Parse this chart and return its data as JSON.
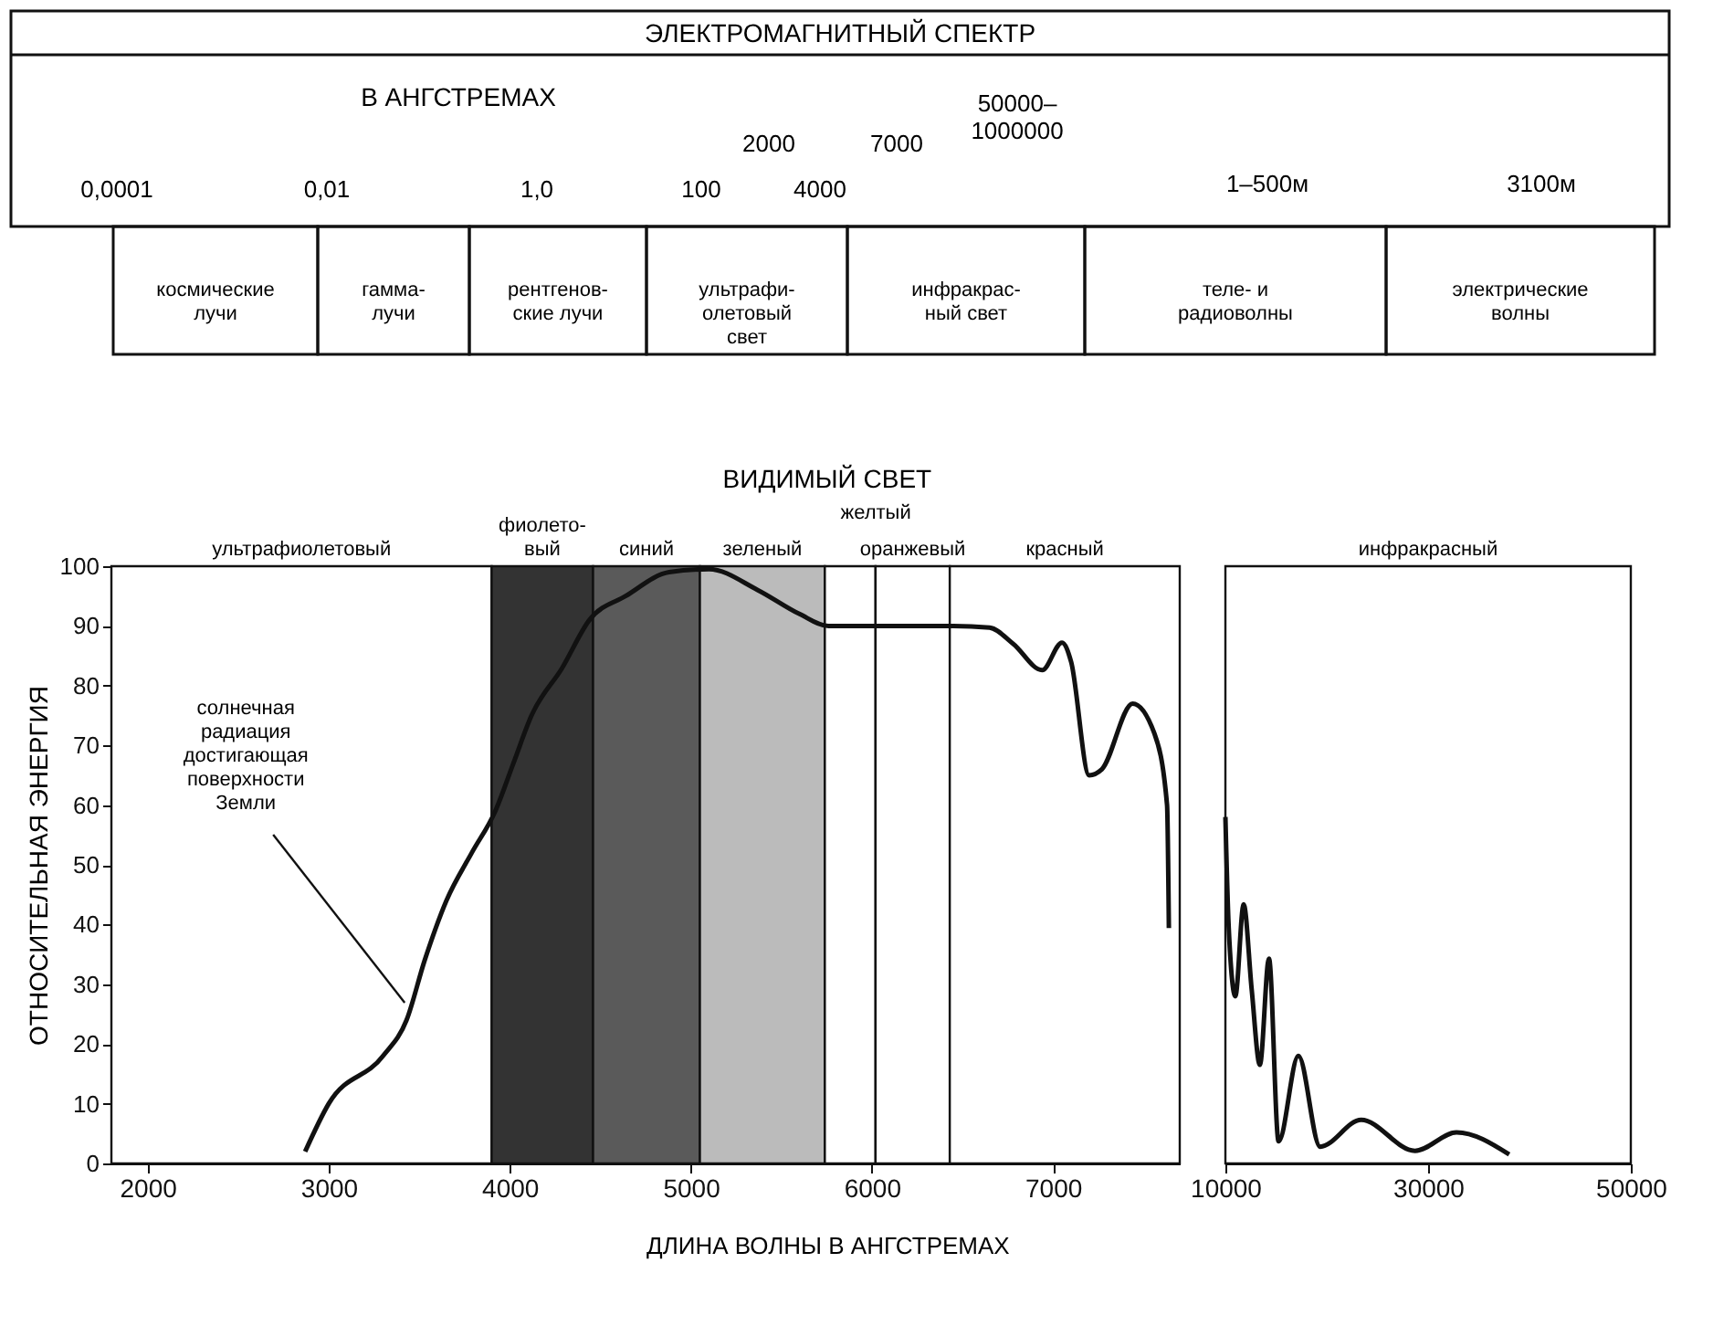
{
  "chart_data": [
    {
      "type": "other",
      "title": "ЭЛЕКТРОМАГНИТНЫЙ СПЕКТР",
      "subtitle": "В АНГСТРЕМАХ",
      "categories": [
        "космические\nлучи",
        "гамма-\nлучи",
        "рентгенов-\nские лучи",
        "ультрафи-\nолетовый\nсвет",
        "инфракрас-\nный свет",
        "теле- и\nрадиоволны",
        "электрические\nволны"
      ],
      "annotations": [
        "0,0001",
        "0,01",
        "1,0",
        "100",
        "2000",
        "4000",
        "7000",
        "50000–\n1000000",
        "1–500м",
        "3100м"
      ]
    },
    {
      "type": "line",
      "xlabel": "ДЛИНА ВОЛНЫ В АНГСТРЕМАХ",
      "ylabel": "ОТНОСИТЕЛЬНАЯ ЭНЕРГИЯ",
      "color": "#111111",
      "x": [
        2870,
        3000,
        3300,
        3430,
        3530,
        3650,
        3790,
        3920,
        4020,
        4120,
        4290,
        4440,
        4640,
        4880,
        5100,
        5370,
        5600,
        5760,
        6020,
        6450,
        6650,
        6780,
        6940,
        7050,
        7100,
        7200,
        7270,
        7440,
        7560,
        7630,
        7640
      ],
      "values": [
        2,
        10,
        18,
        24,
        34,
        44,
        52,
        59,
        67,
        75,
        83,
        91,
        95,
        99,
        99.5,
        96,
        92,
        90,
        90,
        90,
        89.7,
        87,
        82.6,
        87.2,
        84,
        65,
        66,
        77,
        72,
        60,
        39.4
      ],
      "xlim": [
        1800,
        7700
      ],
      "xticks": [
        2000,
        3000,
        4000,
        5000,
        6000,
        7000
      ],
      "ylim": [
        0,
        100
      ],
      "yticks": [
        0,
        10,
        20,
        30,
        40,
        50,
        60,
        70,
        80,
        90,
        100
      ],
      "bands": [
        {
          "axis": "x",
          "from": 1800,
          "to": 3900,
          "label": "ультрафиолетовый",
          "color": "#ffffff"
        },
        {
          "axis": "x",
          "from": 3900,
          "to": 4460,
          "label": "фиолето-\nвый",
          "color": "#333333"
        },
        {
          "axis": "x",
          "from": 4460,
          "to": 5050,
          "label": "синий",
          "color": "#5a5a5a"
        },
        {
          "axis": "x",
          "from": 5050,
          "to": 5740,
          "label": "зеленый",
          "color": "#bbbbbb"
        },
        {
          "axis": "x",
          "from": 5740,
          "to": 6020,
          "label": "желтый",
          "color": "#ffffff"
        },
        {
          "axis": "x",
          "from": 6020,
          "to": 6430,
          "label": "оранжевый",
          "color": "#ffffff"
        },
        {
          "axis": "x",
          "from": 6430,
          "to": 7700,
          "label": "красный",
          "color": "#ffffff"
        }
      ],
      "annotations": [
        "ВИДИМЫЙ СВЕТ",
        {
          "text": "солнечная\nрадиация\nдостигающая\nповерхности\nЗемли",
          "x": 3450,
          "y": 26
        }
      ]
    },
    {
      "type": "line",
      "color": "#111111",
      "tick_labels": "x",
      "x": [
        10000,
        10330,
        10980,
        11800,
        12600,
        13400,
        14300,
        15250,
        17200,
        19350,
        23400,
        28700,
        32800,
        38000
      ],
      "values": [
        58,
        39.4,
        28,
        43.4,
        29,
        16.5,
        34.3,
        3.7,
        18,
        2.8,
        7.3,
        2.1,
        5.2,
        1.5
      ],
      "xlim": [
        10000,
        50000
      ],
      "xticks": [
        10000,
        30000,
        50000
      ],
      "ylim": [
        0,
        100
      ],
      "bands": [
        {
          "axis": "x",
          "from": 10000,
          "to": 50000,
          "label": "инфракрасный",
          "color": "#ffffff"
        }
      ]
    }
  ]
}
